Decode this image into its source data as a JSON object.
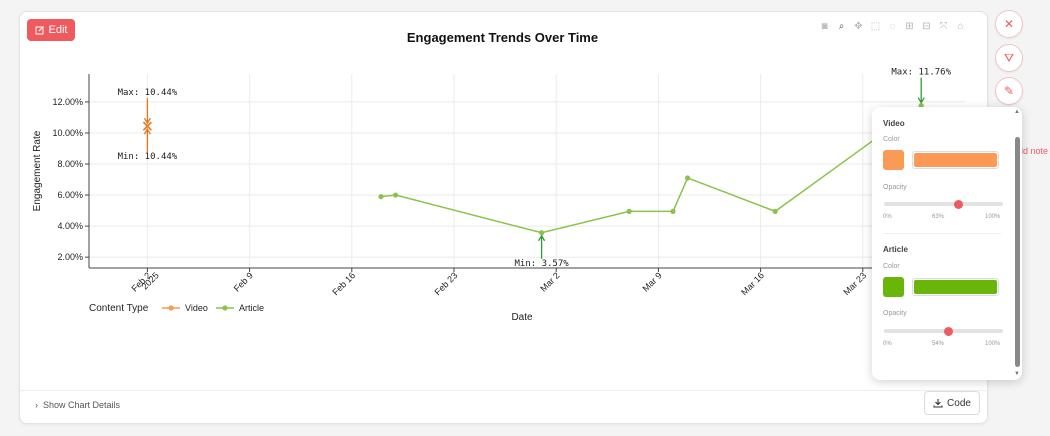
{
  "toolbar": {
    "edit_label": "Edit"
  },
  "chart_data": {
    "type": "line",
    "title": "Engagement Trends Over Time",
    "xlabel": "Date",
    "ylabel": "Engagement Rate",
    "x_ticks": [
      {
        "date": "2025-02-02",
        "label": "Feb 2",
        "sub": "2025"
      },
      {
        "date": "2025-02-09",
        "label": "Feb 9"
      },
      {
        "date": "2025-02-16",
        "label": "Feb 16"
      },
      {
        "date": "2025-02-23",
        "label": "Feb 23"
      },
      {
        "date": "2025-03-02",
        "label": "Mar 2"
      },
      {
        "date": "2025-03-09",
        "label": "Mar 9"
      },
      {
        "date": "2025-03-16",
        "label": "Mar 16"
      },
      {
        "date": "2025-03-23",
        "label": "Mar 23"
      }
    ],
    "y_ticks": [
      2,
      4,
      6,
      8,
      10,
      12
    ],
    "y_tick_suffix": ".00%",
    "xlim": [
      "2025-01-29",
      "2025-03-30"
    ],
    "ylim": [
      1.3,
      13.8
    ],
    "grid": true,
    "legend": {
      "title": "Content Type",
      "placement": "bottom-left",
      "entries": [
        "Video",
        "Article"
      ]
    },
    "series": [
      {
        "name": "Video",
        "color": "#f39c52",
        "marker": "x",
        "points": [
          {
            "x": "2025-02-02",
            "y": 10.44
          }
        ]
      },
      {
        "name": "Article",
        "color": "#8bc34a",
        "marker": "circle",
        "points": [
          {
            "x": "2025-02-18",
            "y": 5.9
          },
          {
            "x": "2025-02-19",
            "y": 6.0
          },
          {
            "x": "2025-03-01",
            "y": 3.57
          },
          {
            "x": "2025-03-07",
            "y": 4.95
          },
          {
            "x": "2025-03-10",
            "y": 4.95
          },
          {
            "x": "2025-03-11",
            "y": 7.1
          },
          {
            "x": "2025-03-17",
            "y": 4.95
          },
          {
            "x": "2025-03-27",
            "y": 11.76
          }
        ]
      }
    ],
    "annotations": [
      {
        "text": "Max: 10.44%",
        "x": "2025-02-02",
        "y": 10.44,
        "side": "above",
        "color": "#e8751a"
      },
      {
        "text": "Min: 10.44%",
        "x": "2025-02-02",
        "y": 10.44,
        "side": "below",
        "color": "#e8751a"
      },
      {
        "text": "Min: 3.57%",
        "x": "2025-03-01",
        "y": 3.57,
        "side": "below",
        "color": "#2e9e2e"
      },
      {
        "text": "Max: 11.76%",
        "x": "2025-03-27",
        "y": 11.76,
        "side": "above",
        "color": "#2e9e2e"
      }
    ]
  },
  "style_panel": {
    "video": {
      "title": "Video",
      "color_label": "Color",
      "color": "#fb9a55",
      "opacity_label": "Opacity",
      "opacity": 63,
      "min_label": "0%",
      "value_label": "63%",
      "max_label": "100%"
    },
    "article": {
      "title": "Article",
      "color_label": "Color",
      "color": "#6ab50a",
      "opacity_label": "Opacity",
      "opacity": 54,
      "min_label": "0%",
      "value_label": "54%",
      "max_label": "100%"
    }
  },
  "side": {
    "add_note": "dd note"
  },
  "footer": {
    "details_label": "Show Chart Details",
    "code_label": "Code"
  }
}
